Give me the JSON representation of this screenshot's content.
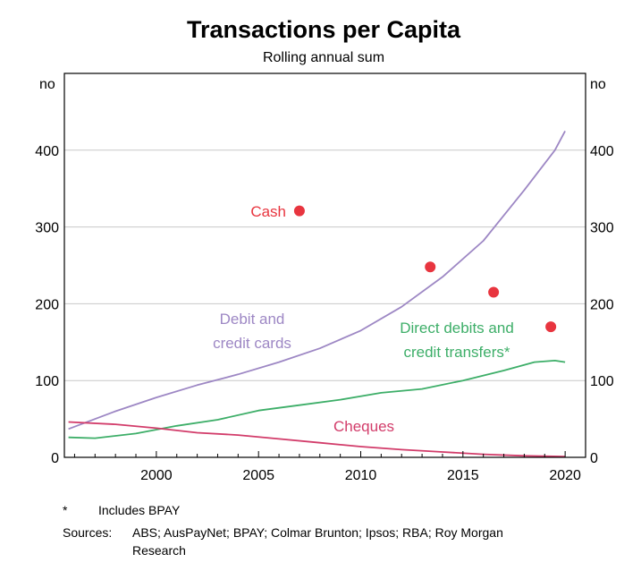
{
  "chart_data": {
    "type": "line",
    "title": "Transactions per Capita",
    "subtitle": "Rolling annual sum",
    "yunit_left": "no",
    "yunit_right": "no",
    "xlim": [
      1995.5,
      2021
    ],
    "ylim": [
      0,
      500
    ],
    "xticks": [
      2000,
      2005,
      2010,
      2015,
      2020
    ],
    "yticks": [
      0,
      100,
      200,
      300,
      400
    ],
    "grid": true,
    "series": [
      {
        "name": "Debit and credit cards",
        "label_lines": [
          "Debit and",
          "credit cards"
        ],
        "color": "#9d87c4",
        "x": [
          1995.7,
          1998,
          2000,
          2002,
          2004,
          2006,
          2008,
          2010,
          2012,
          2014,
          2016,
          2018,
          2019.5,
          2020
        ],
        "y": [
          37,
          60,
          78,
          94,
          108,
          124,
          142,
          165,
          196,
          235,
          282,
          348,
          400,
          425
        ]
      },
      {
        "name": "Direct debits and credit transfers*",
        "label_lines": [
          "Direct debits and",
          "credit transfers*"
        ],
        "color": "#3dae68",
        "x": [
          1995.7,
          1997,
          1999,
          2001,
          2003,
          2005,
          2007,
          2009,
          2011,
          2013,
          2015,
          2017,
          2018.5,
          2019.5,
          2020
        ],
        "y": [
          26,
          25,
          31,
          41,
          49,
          61,
          68,
          75,
          84,
          89,
          100,
          113,
          124,
          126,
          124
        ]
      },
      {
        "name": "Cheques",
        "label_lines": [
          "Cheques"
        ],
        "color": "#d23c6a",
        "x": [
          1995.7,
          1998,
          2000,
          2002,
          2004,
          2006,
          2008,
          2010,
          2012,
          2014,
          2016,
          2018,
          2020
        ],
        "y": [
          46,
          43,
          38,
          32,
          29,
          24,
          19,
          14,
          10,
          7,
          4,
          2,
          1
        ]
      }
    ],
    "points": {
      "name": "Cash",
      "label_lines": [
        "Cash"
      ],
      "color": "#e8353f",
      "x": [
        2007,
        2013.4,
        2016.5,
        2019.3
      ],
      "y": [
        321,
        248,
        215,
        170
      ]
    }
  },
  "footnotes": {
    "mark": "*",
    "note": "Includes BPAY",
    "sources_label": "Sources:",
    "sources_text": "ABS; AusPayNet; BPAY; Colmar Brunton; Ipsos; RBA; Roy Morgan Research"
  }
}
